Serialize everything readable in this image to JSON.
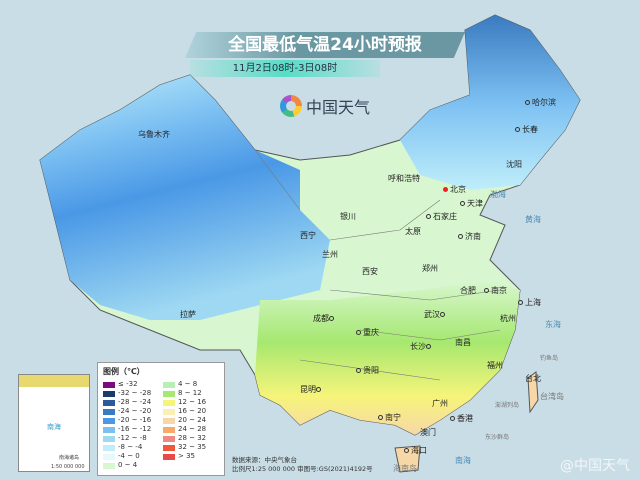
{
  "header": {
    "title": "全国最低气温24小时预报",
    "subtitle": "11月2日08时-3日08时",
    "logo": "中国天气"
  },
  "cities": [
    "乌鲁木齐",
    "哈尔滨",
    "长春",
    "沈阳",
    "呼和浩特",
    "北京",
    "天津",
    "石家庄",
    "太原",
    "济南",
    "银川",
    "西宁",
    "兰州",
    "西安",
    "郑州",
    "合肥",
    "南京",
    "上海",
    "拉萨",
    "成都",
    "重庆",
    "武汉",
    "杭州",
    "长沙",
    "南昌",
    "贵阳",
    "福州",
    "台北",
    "昆明",
    "南宁",
    "广州",
    "香港",
    "澳门",
    "海口"
  ],
  "seas": [
    "渤海",
    "黄海",
    "东海",
    "南海",
    "台湾岛",
    "海南岛",
    "钓鱼岛",
    "澎湖列岛",
    "东沙群岛"
  ],
  "legend": {
    "title": "图例（℃）",
    "items": [
      {
        "label": "≤ -32",
        "color": "#7a0a7e"
      },
      {
        "label": "-32 ~ -28",
        "color": "#1d3a6e"
      },
      {
        "label": "-28 ~ -24",
        "color": "#2a5a9a"
      },
      {
        "label": "-24 ~ -20",
        "color": "#3a7ac0"
      },
      {
        "label": "-20 ~ -16",
        "color": "#4a98e6"
      },
      {
        "label": "-16 ~ -12",
        "color": "#7cc0f2"
      },
      {
        "label": "-12 ~ -8",
        "color": "#9ed8f2"
      },
      {
        "label": "-8 ~ -4",
        "color": "#bfeefa"
      },
      {
        "label": "-4 ~ 0",
        "color": "#e6fafd"
      },
      {
        "label": "0 ~ 4",
        "color": "#d8f7d0"
      },
      {
        "label": "4 ~ 8",
        "color": "#b6f0b4"
      },
      {
        "label": "8 ~ 12",
        "color": "#a6e870"
      },
      {
        "label": "12 ~ 16",
        "color": "#f6f47a"
      },
      {
        "label": "16 ~ 20",
        "color": "#fbefb6"
      },
      {
        "label": "20 ~ 24",
        "color": "#f6d8a8"
      },
      {
        "label": "24 ~ 28",
        "color": "#f6ab6a"
      },
      {
        "label": "28 ~ 32",
        "color": "#ee8a86"
      },
      {
        "label": "32 ~ 35",
        "color": "#f0583a"
      },
      {
        "label": "> 35",
        "color": "#e84a4a"
      }
    ]
  },
  "inset": {
    "title": "南海诸岛",
    "scale": "1:50 000 000",
    "sea": "南海"
  },
  "footer": {
    "source": "数据来源：中央气象台",
    "scale": "比例尺1:25 000 000  审图号:GS(2021)4192号"
  },
  "watermark": "@中国天气"
}
